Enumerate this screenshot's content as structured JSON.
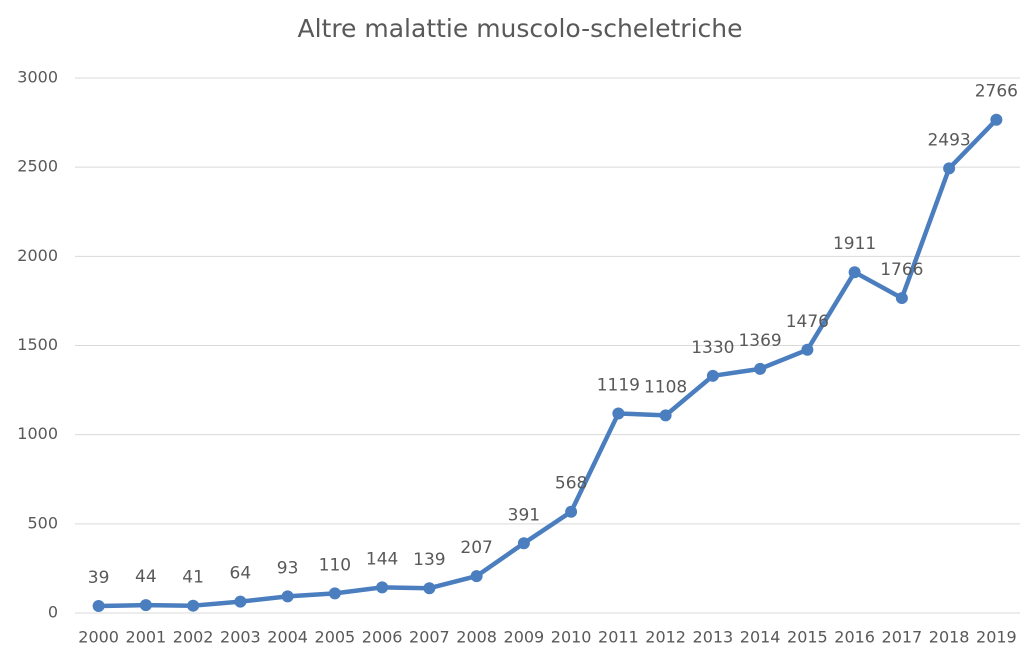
{
  "chart_data": {
    "type": "line",
    "title": "Altre malattie muscolo-scheletriche",
    "categories": [
      "2000",
      "2001",
      "2002",
      "2003",
      "2004",
      "2005",
      "2006",
      "2007",
      "2008",
      "2009",
      "2010",
      "2011",
      "2012",
      "2013",
      "2014",
      "2015",
      "2016",
      "2017",
      "2018",
      "2019"
    ],
    "values": [
      39,
      44,
      41,
      64,
      93,
      110,
      144,
      139,
      207,
      391,
      568,
      1119,
      1108,
      1330,
      1369,
      1476,
      1911,
      1766,
      2493,
      2766
    ],
    "color": "#4a7ebf",
    "ylim": [
      0,
      3000
    ],
    "yticks": [
      0,
      500,
      1000,
      1500,
      2000,
      2500,
      3000
    ],
    "grid": true
  }
}
